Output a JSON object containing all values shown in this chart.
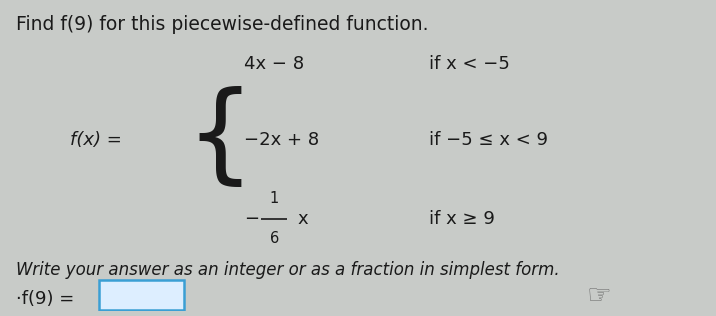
{
  "title": "Find f(9) for this piecewise-defined function.",
  "title_fontsize": 13.5,
  "background_color": "#c8cbc8",
  "fx_label": "f(x) =",
  "piece1_expr": "4x − 8",
  "piece1_cond": "if x < −5",
  "piece2_expr": "−2x + 8",
  "piece2_cond": "if −5 ≤ x < 9",
  "piece3_minus": "−",
  "piece3_frac_num": "1",
  "piece3_frac_den": "6",
  "piece3_x": "x",
  "piece3_cond": "if x ≥ 9",
  "instruction": "Write your answer as an integer or as a fraction in simplest form.",
  "answer_label": "·f(9) =",
  "text_color": "#1a1a1a",
  "box_edgecolor": "#3a9fd4",
  "box_facecolor": "#ddeeff"
}
